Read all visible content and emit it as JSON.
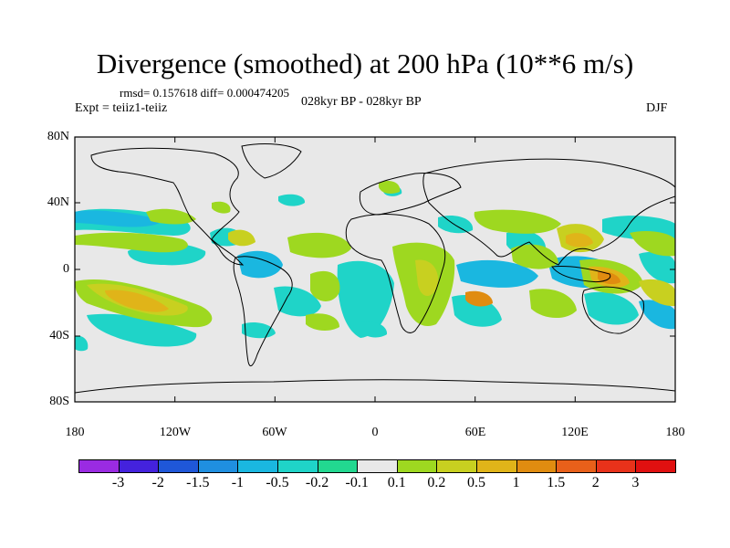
{
  "title": "Divergence (smoothed) at 200 hPa (10**6 m/s)",
  "stats": "rmsd= 0.157618 diff= 0.000474205",
  "experiment": "Expt = teiiz1-teiiz",
  "period": "028kyr BP - 028kyr BP",
  "season": "DJF",
  "lat_labels": [
    "80N",
    "40N",
    "0",
    "40S",
    "80S"
  ],
  "lon_labels": [
    "180",
    "120W",
    "60W",
    "0",
    "60E",
    "120E",
    "180"
  ],
  "colorbar": {
    "colors": [
      "#9a2be2",
      "#4422dd",
      "#1f57d8",
      "#1f8fe0",
      "#1ab7e0",
      "#1fd4c8",
      "#22d890",
      "#e8e8e8",
      "#9ed820",
      "#c8d020",
      "#e0b419",
      "#e08c10",
      "#e8601a",
      "#e8321a",
      "#e01010"
    ],
    "labels": [
      "-3",
      "-2",
      "-1.5",
      "-1",
      "-0.5",
      "-0.2",
      "-0.1",
      "0.1",
      "0.2",
      "0.5",
      "1",
      "1.5",
      "2",
      "3"
    ]
  },
  "map": {
    "background": "#e8e8e8"
  }
}
